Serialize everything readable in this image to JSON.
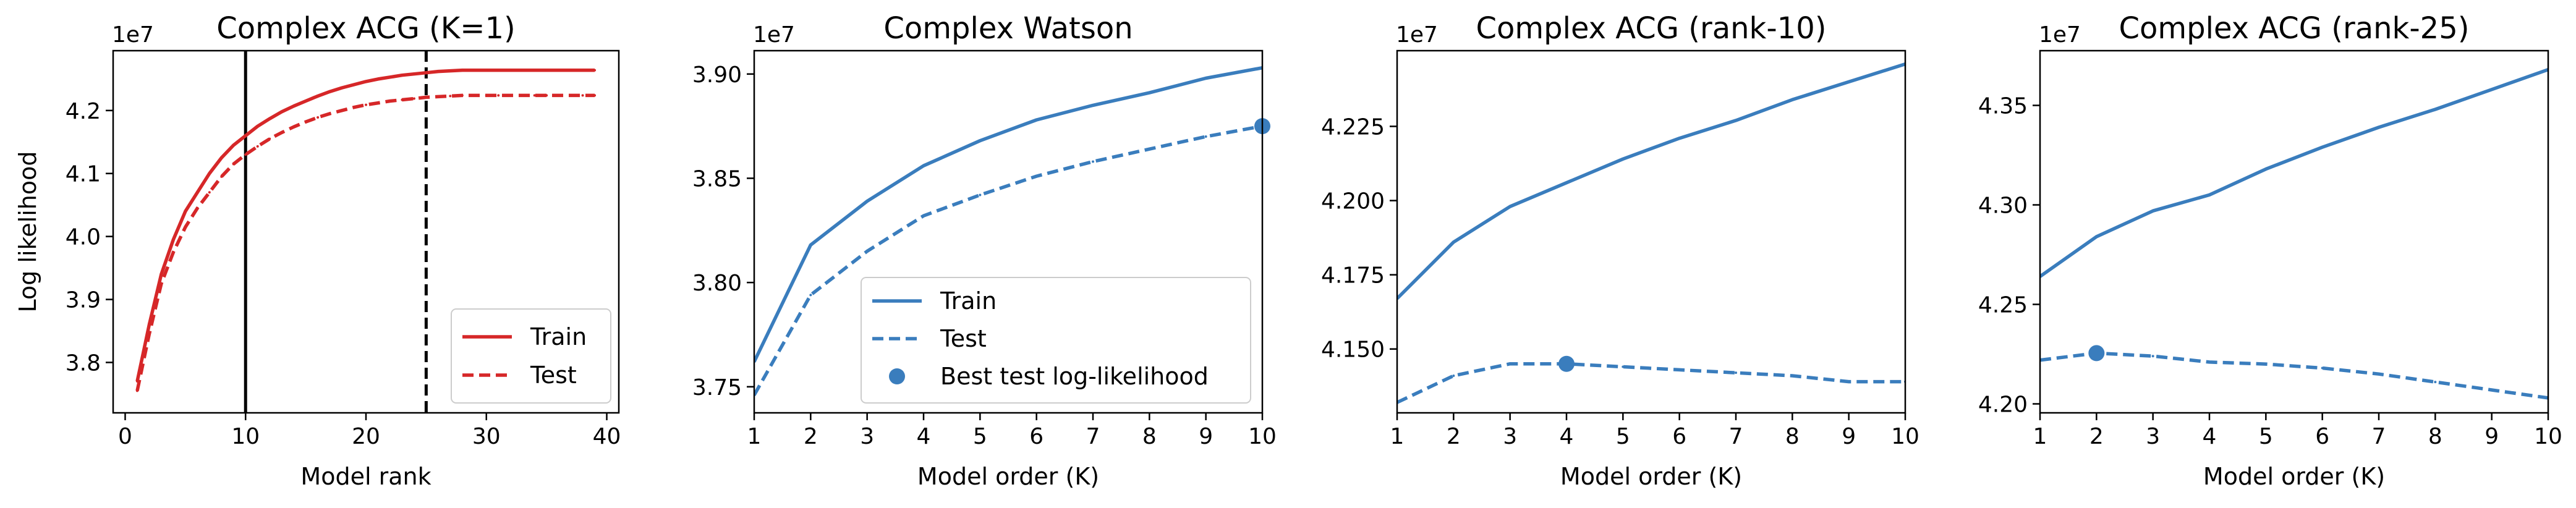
{
  "colors": {
    "red": "#d62728",
    "blue": "#3a7dbd",
    "vline": "#000000"
  },
  "chart_data": [
    {
      "type": "line",
      "title": "Complex ACG (K=1)",
      "xlabel": "Model rank",
      "ylabel": "Log likelihood",
      "offset_label": "1e7",
      "xlim": [
        -1,
        41
      ],
      "ylim": [
        3.72,
        4.295
      ],
      "xticks": [
        0,
        10,
        20,
        30,
        40
      ],
      "yticks": [
        3.8,
        3.9,
        4.0,
        4.1,
        4.2
      ],
      "ytick_labels": [
        "3.8",
        "3.9",
        "4.0",
        "4.1",
        "4.2"
      ],
      "grid": false,
      "legend": "lower-right",
      "vlines": [
        {
          "x": 10,
          "style": "solid"
        },
        {
          "x": 25,
          "style": "dashed"
        }
      ],
      "series": [
        {
          "name": "Train",
          "style": "solid",
          "color": "red",
          "x": [
            1,
            2,
            3,
            4,
            5,
            6,
            7,
            8,
            9,
            10,
            11,
            12,
            13,
            14,
            15,
            16,
            17,
            18,
            19,
            20,
            21,
            22,
            23,
            24,
            25,
            26,
            27,
            28,
            29,
            30,
            31,
            32,
            33,
            34,
            35,
            36,
            37,
            38,
            39
          ],
          "values": [
            3.77,
            3.86,
            3.94,
            3.995,
            4.04,
            4.07,
            4.1,
            4.125,
            4.145,
            4.16,
            4.175,
            4.187,
            4.198,
            4.207,
            4.215,
            4.223,
            4.23,
            4.236,
            4.241,
            4.246,
            4.25,
            4.253,
            4.256,
            4.258,
            4.26,
            4.262,
            4.263,
            4.264,
            4.264,
            4.264,
            4.264,
            4.264,
            4.264,
            4.264,
            4.264,
            4.264,
            4.264,
            4.264,
            4.264
          ]
        },
        {
          "name": "Test",
          "style": "dashed",
          "color": "red",
          "x": [
            1,
            2,
            3,
            4,
            5,
            6,
            7,
            8,
            9,
            10,
            11,
            12,
            13,
            14,
            15,
            16,
            17,
            18,
            19,
            20,
            21,
            22,
            23,
            24,
            25,
            26,
            27,
            28,
            29,
            30,
            31,
            32,
            33,
            34,
            35,
            36,
            37,
            38,
            39
          ],
          "values": [
            3.755,
            3.845,
            3.925,
            3.975,
            4.015,
            4.045,
            4.07,
            4.095,
            4.115,
            4.13,
            4.143,
            4.155,
            4.165,
            4.174,
            4.182,
            4.189,
            4.195,
            4.2,
            4.205,
            4.209,
            4.212,
            4.215,
            4.217,
            4.219,
            4.221,
            4.222,
            4.223,
            4.224,
            4.224,
            4.224,
            4.224,
            4.224,
            4.224,
            4.224,
            4.224,
            4.224,
            4.224,
            4.224,
            4.224
          ]
        }
      ]
    },
    {
      "type": "line",
      "title": "Complex Watson",
      "xlabel": "Model order (K)",
      "ylabel": "",
      "offset_label": "1e7",
      "xlim": [
        1,
        10
      ],
      "ylim": [
        3.7375,
        3.9112
      ],
      "xticks": [
        1,
        2,
        3,
        4,
        5,
        6,
        7,
        8,
        9,
        10
      ],
      "yticks": [
        3.75,
        3.8,
        3.85,
        3.9
      ],
      "ytick_labels": [
        "3.75",
        "3.80",
        "3.85",
        "3.90"
      ],
      "grid": false,
      "legend": "lower-right",
      "best_point": {
        "x": 10,
        "y": 3.875
      },
      "series": [
        {
          "name": "Train",
          "style": "solid",
          "color": "blue",
          "x": [
            1,
            2,
            3,
            4,
            5,
            6,
            7,
            8,
            9,
            10
          ],
          "values": [
            3.762,
            3.818,
            3.839,
            3.856,
            3.868,
            3.878,
            3.885,
            3.891,
            3.898,
            3.903
          ]
        },
        {
          "name": "Test",
          "style": "dashed",
          "color": "blue",
          "x": [
            1,
            2,
            3,
            4,
            5,
            6,
            7,
            8,
            9,
            10
          ],
          "values": [
            3.746,
            3.794,
            3.815,
            3.832,
            3.842,
            3.851,
            3.858,
            3.864,
            3.87,
            3.875
          ]
        }
      ],
      "legend_entries": [
        "Train",
        "Test",
        "Best test log-likelihood"
      ]
    },
    {
      "type": "line",
      "title": "Complex ACG (rank-10)",
      "xlabel": "Model order (K)",
      "ylabel": "",
      "offset_label": "1e7",
      "xlim": [
        1,
        10
      ],
      "ylim": [
        4.1285,
        4.2505
      ],
      "xticks": [
        1,
        2,
        3,
        4,
        5,
        6,
        7,
        8,
        9,
        10
      ],
      "yticks": [
        4.15,
        4.175,
        4.2,
        4.225
      ],
      "ytick_labels": [
        "4.150",
        "4.175",
        "4.200",
        "4.225"
      ],
      "grid": false,
      "best_point": {
        "x": 4,
        "y": 4.145
      },
      "series": [
        {
          "name": "Train",
          "style": "solid",
          "color": "blue",
          "x": [
            1,
            2,
            3,
            4,
            5,
            6,
            7,
            8,
            9,
            10
          ],
          "values": [
            4.167,
            4.186,
            4.198,
            4.206,
            4.214,
            4.221,
            4.227,
            4.234,
            4.24,
            4.246
          ]
        },
        {
          "name": "Test",
          "style": "dashed",
          "color": "blue",
          "x": [
            1,
            2,
            3,
            4,
            5,
            6,
            7,
            8,
            9,
            10
          ],
          "values": [
            4.132,
            4.141,
            4.145,
            4.145,
            4.144,
            4.143,
            4.142,
            4.141,
            4.139,
            4.139
          ]
        }
      ]
    },
    {
      "type": "line",
      "title": "Complex ACG (rank-25)",
      "xlabel": "Model order (K)",
      "ylabel": "",
      "offset_label": "1e7",
      "xlim": [
        1,
        10
      ],
      "ylim": [
        4.1955,
        4.3775
      ],
      "xticks": [
        1,
        2,
        3,
        4,
        5,
        6,
        7,
        8,
        9,
        10
      ],
      "yticks": [
        4.2,
        4.25,
        4.3,
        4.35
      ],
      "ytick_labels": [
        "4.20",
        "4.25",
        "4.30",
        "4.35"
      ],
      "grid": false,
      "best_point": {
        "x": 2,
        "y": 4.2255
      },
      "series": [
        {
          "name": "Train",
          "style": "solid",
          "color": "blue",
          "x": [
            1,
            2,
            3,
            4,
            5,
            6,
            7,
            8,
            9,
            10
          ],
          "values": [
            4.264,
            4.284,
            4.297,
            4.305,
            4.318,
            4.329,
            4.339,
            4.348,
            4.358,
            4.368
          ]
        },
        {
          "name": "Test",
          "style": "dashed",
          "color": "blue",
          "x": [
            1,
            2,
            3,
            4,
            5,
            6,
            7,
            8,
            9,
            10
          ],
          "values": [
            4.222,
            4.2255,
            4.224,
            4.221,
            4.22,
            4.218,
            4.215,
            4.211,
            4.207,
            4.203
          ]
        }
      ]
    }
  ]
}
